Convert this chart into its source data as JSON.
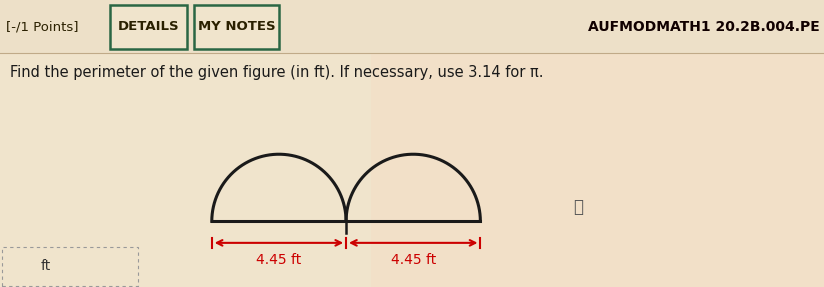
{
  "bg_color": "#f0e4cc",
  "header_bg": "#ede0c8",
  "fig_bg": "#f0e4cc",
  "header_left_text": "[-/1 Points]",
  "btn1_text": "DETAILS",
  "btn2_text": "MY NOTES",
  "header_right_text": "AUFMODMATH1 20.2B.004.PE",
  "question_text": "Find the perimeter of the given figure (in ft). If necessary, use 3.14 for π.",
  "dim1_text": "4.45 ft",
  "dim2_text": "4.45 ft",
  "dim_color": "#cc0000",
  "semicircle_color": "#1a1a1a",
  "baseline_color": "#1a1a1a",
  "info_circle_color": "#555555",
  "bottom_box_text": "ft",
  "header_text_color": "#2a2000",
  "btn_edge_color": "#2a6644",
  "question_color": "#1a1a1a"
}
